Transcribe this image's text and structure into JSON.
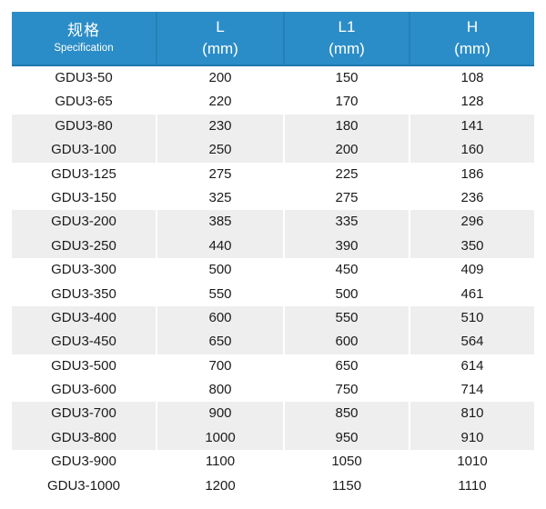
{
  "table": {
    "header": {
      "spec_zh": "规格",
      "spec_en": "Specification",
      "l_label": "L",
      "l_unit": "(mm)",
      "l1_label": "L1",
      "l1_unit": "(mm)",
      "h_label": "H",
      "h_unit": "(mm)"
    },
    "rows": [
      {
        "spec": "GDU3-50",
        "l": "200",
        "l1": "150",
        "h": "108"
      },
      {
        "spec": "GDU3-65",
        "l": "220",
        "l1": "170",
        "h": "128"
      },
      {
        "spec": "GDU3-80",
        "l": "230",
        "l1": "180",
        "h": "141"
      },
      {
        "spec": "GDU3-100",
        "l": "250",
        "l1": "200",
        "h": "160"
      },
      {
        "spec": "GDU3-125",
        "l": "275",
        "l1": "225",
        "h": "186"
      },
      {
        "spec": "GDU3-150",
        "l": "325",
        "l1": "275",
        "h": "236"
      },
      {
        "spec": "GDU3-200",
        "l": "385",
        "l1": "335",
        "h": "296"
      },
      {
        "spec": "GDU3-250",
        "l": "440",
        "l1": "390",
        "h": "350"
      },
      {
        "spec": "GDU3-300",
        "l": "500",
        "l1": "450",
        "h": "409"
      },
      {
        "spec": "GDU3-350",
        "l": "550",
        "l1": "500",
        "h": "461"
      },
      {
        "spec": "GDU3-400",
        "l": "600",
        "l1": "550",
        "h": "510"
      },
      {
        "spec": "GDU3-450",
        "l": "650",
        "l1": "600",
        "h": "564"
      },
      {
        "spec": "GDU3-500",
        "l": "700",
        "l1": "650",
        "h": "614"
      },
      {
        "spec": "GDU3-600",
        "l": "800",
        "l1": "750",
        "h": "714"
      },
      {
        "spec": "GDU3-700",
        "l": "900",
        "l1": "850",
        "h": "810"
      },
      {
        "spec": "GDU3-800",
        "l": "1000",
        "l1": "950",
        "h": "910"
      },
      {
        "spec": "GDU3-900",
        "l": "1100",
        "l1": "1050",
        "h": "1010"
      },
      {
        "spec": "GDU3-1000",
        "l": "1200",
        "l1": "1150",
        "h": "1110"
      }
    ]
  },
  "colors": {
    "header_bg": "#2B8DC7",
    "header_divider": "#2380B7",
    "header_bottom_border": "#1E79AE",
    "header_text": "#FFFFFF",
    "shaded_row_bg": "#EEEEEE",
    "body_text": "#1B1B1B",
    "page_bg": "#FFFFFF"
  }
}
